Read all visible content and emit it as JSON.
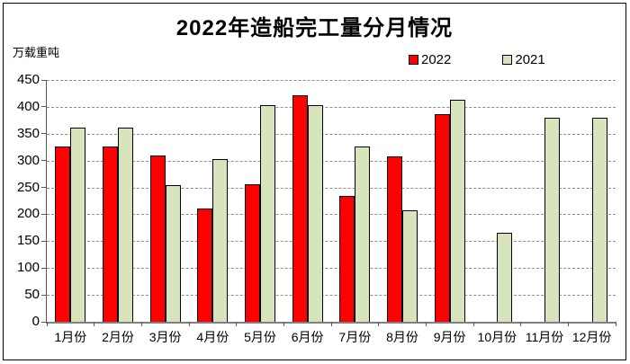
{
  "chart_data": {
    "type": "bar",
    "title": "2022年造船完工量分月情况",
    "ylabel": "万载重吨",
    "xlabel": "",
    "categories": [
      "1月份",
      "2月份",
      "3月份",
      "4月份",
      "5月份",
      "6月份",
      "7月份",
      "8月份",
      "9月份",
      "10月份",
      "11月份",
      "12月份"
    ],
    "series": [
      {
        "name": "2022",
        "color": "#FF0000",
        "values": [
          327,
          327,
          309,
          210,
          256,
          421,
          234,
          308,
          386,
          null,
          null,
          null
        ]
      },
      {
        "name": "2021",
        "color": "#D8E4BC",
        "values": [
          361,
          361,
          255,
          302,
          404,
          404,
          326,
          207,
          413,
          165,
          380,
          380
        ]
      }
    ],
    "ylim": [
      0,
      450
    ],
    "yticks": [
      0,
      50,
      100,
      150,
      200,
      250,
      300,
      350,
      400,
      450
    ],
    "grid": "horizontal-dashed",
    "legend_position": "top-right",
    "bar_border_color": "#000000"
  }
}
